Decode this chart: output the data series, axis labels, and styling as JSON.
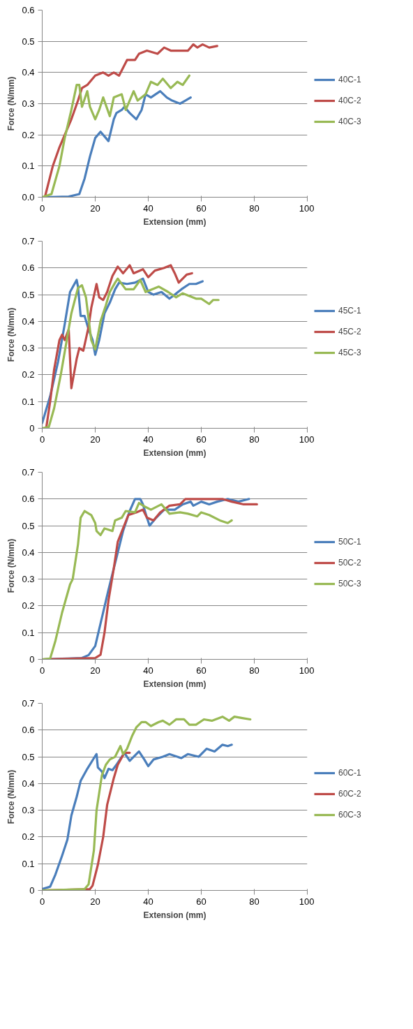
{
  "chart_data": [
    {
      "type": "line",
      "xlabel": "Extension (mm)",
      "ylabel": "Force (N/mm)",
      "xlim": [
        0,
        100
      ],
      "xticks": [
        0,
        20,
        40,
        60,
        80,
        100
      ],
      "ylim": [
        0,
        0.6
      ],
      "yticks": [
        {
          "value": 0,
          "label": "0.0"
        },
        0.1,
        0.2,
        0.3,
        0.4,
        0.5,
        0.6
      ],
      "grid": "y",
      "legend": "right",
      "series": [
        {
          "name": "40C-1",
          "color": "#4a7ebb",
          "x": [
            0,
            10,
            14,
            16,
            18,
            20,
            22,
            24,
            25,
            27,
            28,
            30,
            31,
            33,
            35.5,
            37.5,
            39,
            41,
            44.5,
            47,
            49,
            52,
            54,
            56
          ],
          "values": [
            0,
            0.002,
            0.01,
            0.06,
            0.13,
            0.19,
            0.21,
            0.19,
            0.18,
            0.25,
            0.27,
            0.28,
            0.29,
            0.27,
            0.25,
            0.28,
            0.33,
            0.32,
            0.34,
            0.32,
            0.31,
            0.3,
            0.31,
            0.32
          ]
        },
        {
          "name": "40C-2",
          "color": "#be4b48",
          "x": [
            0,
            1,
            4,
            6.5,
            8.5,
            11,
            13.5,
            15,
            17,
            19,
            20,
            23,
            25,
            27,
            29,
            32,
            35,
            36.5,
            39.5,
            43.5,
            46,
            48.5,
            51.5,
            55,
            57,
            58.5,
            60.5,
            63,
            66
          ],
          "values": [
            0,
            0,
            0.1,
            0.16,
            0.2,
            0.25,
            0.31,
            0.35,
            0.36,
            0.38,
            0.39,
            0.4,
            0.39,
            0.4,
            0.39,
            0.44,
            0.44,
            0.46,
            0.47,
            0.46,
            0.48,
            0.47,
            0.47,
            0.47,
            0.49,
            0.48,
            0.49,
            0.48,
            0.485
          ]
        },
        {
          "name": "40C-3",
          "color": "#98b954",
          "x": [
            0,
            3.5,
            6.5,
            8.5,
            11,
            13,
            14,
            15,
            17,
            18,
            20,
            21.5,
            23,
            25.5,
            27,
            30,
            31.5,
            34.5,
            36,
            39,
            41,
            43.5,
            45.5,
            48.5,
            51,
            53,
            55.5
          ],
          "values": [
            0,
            0.01,
            0.1,
            0.19,
            0.28,
            0.36,
            0.36,
            0.29,
            0.34,
            0.29,
            0.25,
            0.28,
            0.32,
            0.26,
            0.32,
            0.33,
            0.28,
            0.34,
            0.31,
            0.33,
            0.37,
            0.36,
            0.38,
            0.35,
            0.37,
            0.36,
            0.39
          ]
        }
      ]
    },
    {
      "type": "line",
      "xlabel": "Extension (mm)",
      "ylabel": "Force (N/mm)",
      "xlim": [
        0,
        100
      ],
      "xticks": [
        0,
        20,
        40,
        60,
        80,
        100
      ],
      "ylim": [
        0,
        0.7
      ],
      "yticks": [
        0,
        0.1,
        0.2,
        0.3,
        0.4,
        0.5,
        0.6,
        0.7
      ],
      "grid": "y",
      "legend": "right",
      "series": [
        {
          "name": "45C-1",
          "color": "#4a7ebb",
          "x": [
            0,
            3,
            6,
            8.5,
            10.5,
            13,
            13.5,
            14.5,
            16,
            17.5,
            19,
            20,
            21.5,
            23.5,
            25.5,
            27.5,
            29,
            32,
            35,
            38,
            40,
            42,
            45,
            48,
            50,
            52.5,
            55.5,
            58,
            60.5
          ],
          "values": [
            0.02,
            0.12,
            0.25,
            0.39,
            0.51,
            0.555,
            0.53,
            0.42,
            0.42,
            0.37,
            0.33,
            0.275,
            0.33,
            0.43,
            0.47,
            0.52,
            0.545,
            0.54,
            0.545,
            0.56,
            0.51,
            0.5,
            0.51,
            0.485,
            0.5,
            0.52,
            0.54,
            0.54,
            0.55
          ]
        },
        {
          "name": "45C-2",
          "color": "#be4b48",
          "x": [
            1.5,
            3,
            4.5,
            6.5,
            7.5,
            8.5,
            10,
            11,
            13,
            14,
            15.5,
            17.5,
            18.5,
            20.5,
            21.5,
            23,
            24.5,
            26.5,
            28.5,
            30.5,
            33,
            34.5,
            38,
            40,
            42.5,
            46,
            48.5,
            50,
            51.5,
            54.5,
            56.5
          ],
          "values": [
            0,
            0.1,
            0.22,
            0.33,
            0.35,
            0.33,
            0.37,
            0.15,
            0.26,
            0.3,
            0.29,
            0.38,
            0.45,
            0.54,
            0.49,
            0.48,
            0.51,
            0.57,
            0.605,
            0.58,
            0.61,
            0.58,
            0.595,
            0.565,
            0.59,
            0.6,
            0.61,
            0.58,
            0.545,
            0.575,
            0.58
          ]
        },
        {
          "name": "45C-3",
          "color": "#98b954",
          "x": [
            0,
            2.5,
            4.5,
            7,
            9,
            11,
            13.5,
            15,
            16.5,
            17.5,
            18.5,
            20,
            22,
            24,
            25.5,
            27.5,
            28.5,
            31.5,
            34.5,
            37,
            39,
            44,
            47.5,
            50.5,
            53,
            58,
            60,
            63,
            64.5,
            66.5
          ],
          "values": [
            0,
            0.005,
            0.075,
            0.2,
            0.315,
            0.43,
            0.525,
            0.535,
            0.49,
            0.41,
            0.33,
            0.295,
            0.4,
            0.46,
            0.51,
            0.545,
            0.56,
            0.52,
            0.52,
            0.555,
            0.51,
            0.53,
            0.51,
            0.49,
            0.505,
            0.485,
            0.485,
            0.465,
            0.48,
            0.48
          ]
        }
      ]
    },
    {
      "type": "line",
      "xlabel": "Extension (mm)",
      "ylabel": "Force (N/mm)",
      "xlim": [
        0,
        100
      ],
      "xticks": [
        0,
        20,
        40,
        60,
        80,
        100
      ],
      "ylim": [
        0,
        0.7
      ],
      "yticks": [
        0,
        0.1,
        0.2,
        0.3,
        0.4,
        0.5,
        0.6,
        0.7
      ],
      "grid": "y",
      "legend": "right",
      "series": [
        {
          "name": "50C-1",
          "color": "#4a7ebb",
          "x": [
            0,
            15,
            17.5,
            20,
            22.5,
            25,
            28,
            30.5,
            33,
            35,
            37,
            38,
            39.5,
            40.5,
            43,
            46,
            50,
            53,
            56,
            57,
            60,
            63,
            66,
            70,
            74,
            78
          ],
          "values": [
            0,
            0.005,
            0.016,
            0.05,
            0.155,
            0.26,
            0.38,
            0.48,
            0.555,
            0.6,
            0.6,
            0.58,
            0.53,
            0.5,
            0.53,
            0.56,
            0.56,
            0.58,
            0.59,
            0.575,
            0.59,
            0.58,
            0.59,
            0.6,
            0.59,
            0.6
          ]
        },
        {
          "name": "50C-2",
          "color": "#be4b48",
          "x": [
            0,
            20,
            22,
            23.5,
            25,
            27,
            28.5,
            30.5,
            32.5,
            35.5,
            38,
            39.5,
            42,
            44.5,
            48,
            52,
            54,
            60,
            65,
            68,
            71.5,
            76,
            81
          ],
          "values": [
            0,
            0.005,
            0.017,
            0.1,
            0.22,
            0.34,
            0.44,
            0.49,
            0.54,
            0.55,
            0.56,
            0.53,
            0.52,
            0.55,
            0.575,
            0.58,
            0.6,
            0.6,
            0.6,
            0.6,
            0.59,
            0.58,
            0.58
          ]
        },
        {
          "name": "50C-3",
          "color": "#98b954",
          "x": [
            0,
            3,
            5,
            7.5,
            10.5,
            11.5,
            13.5,
            14.5,
            16,
            18.5,
            20,
            20.5,
            22,
            23.5,
            25,
            26.5,
            27.5,
            30,
            31.5,
            35,
            36.5,
            39,
            41,
            45,
            48,
            52,
            55,
            58.5,
            60,
            63,
            67,
            70,
            71.5
          ],
          "values": [
            0,
            0.003,
            0.07,
            0.175,
            0.28,
            0.3,
            0.43,
            0.53,
            0.555,
            0.54,
            0.51,
            0.48,
            0.465,
            0.49,
            0.485,
            0.48,
            0.52,
            0.53,
            0.555,
            0.55,
            0.585,
            0.57,
            0.56,
            0.58,
            0.545,
            0.55,
            0.545,
            0.535,
            0.55,
            0.54,
            0.52,
            0.51,
            0.52
          ]
        }
      ]
    },
    {
      "type": "line",
      "xlabel": "Extension (mm)",
      "ylabel": "Force (N/mm)",
      "xlim": [
        0,
        100
      ],
      "xticks": [
        0,
        20,
        40,
        60,
        80,
        100
      ],
      "ylim": [
        0,
        0.7
      ],
      "yticks": [
        0,
        0.1,
        0.2,
        0.3,
        0.4,
        0.5,
        0.6,
        0.7
      ],
      "grid": "y",
      "legend": "right",
      "series": [
        {
          "name": "60C-1",
          "color": "#4a7ebb",
          "x": [
            0,
            3,
            5,
            7.5,
            9.5,
            11,
            13,
            14.5,
            17,
            19.5,
            20.5,
            21,
            22.5,
            23.5,
            25,
            26.5,
            28,
            30,
            31,
            33,
            36.5,
            38.5,
            40,
            42,
            45.5,
            48,
            52.5,
            55,
            59,
            62,
            65,
            68,
            70,
            71.5
          ],
          "values": [
            0.005,
            0.014,
            0.06,
            0.13,
            0.19,
            0.28,
            0.35,
            0.41,
            0.455,
            0.495,
            0.51,
            0.46,
            0.445,
            0.42,
            0.455,
            0.45,
            0.47,
            0.5,
            0.515,
            0.485,
            0.52,
            0.49,
            0.465,
            0.49,
            0.5,
            0.51,
            0.495,
            0.51,
            0.5,
            0.53,
            0.52,
            0.545,
            0.54,
            0.545
          ]
        },
        {
          "name": "60C-2",
          "color": "#be4b48",
          "x": [
            0,
            18,
            19,
            21,
            23,
            24.5,
            27,
            28.5,
            31,
            33
          ],
          "values": [
            0,
            0.005,
            0.018,
            0.096,
            0.2,
            0.32,
            0.42,
            0.47,
            0.515,
            0.515
          ]
        },
        {
          "name": "60C-3",
          "color": "#98b954",
          "x": [
            0,
            16,
            17.5,
            19.5,
            20.5,
            22.5,
            24,
            25.5,
            27.5,
            29.5,
            30.5,
            32,
            34,
            35.5,
            37.5,
            39,
            41,
            44,
            45.5,
            48,
            50.5,
            53.5,
            55.5,
            58,
            61,
            64,
            68,
            70.5,
            72.5,
            75.5,
            78.5
          ],
          "values": [
            0,
            0.005,
            0.023,
            0.15,
            0.3,
            0.43,
            0.47,
            0.49,
            0.5,
            0.54,
            0.51,
            0.53,
            0.58,
            0.61,
            0.63,
            0.63,
            0.615,
            0.63,
            0.635,
            0.62,
            0.64,
            0.64,
            0.62,
            0.62,
            0.64,
            0.635,
            0.65,
            0.635,
            0.65,
            0.645,
            0.64
          ]
        }
      ]
    }
  ]
}
